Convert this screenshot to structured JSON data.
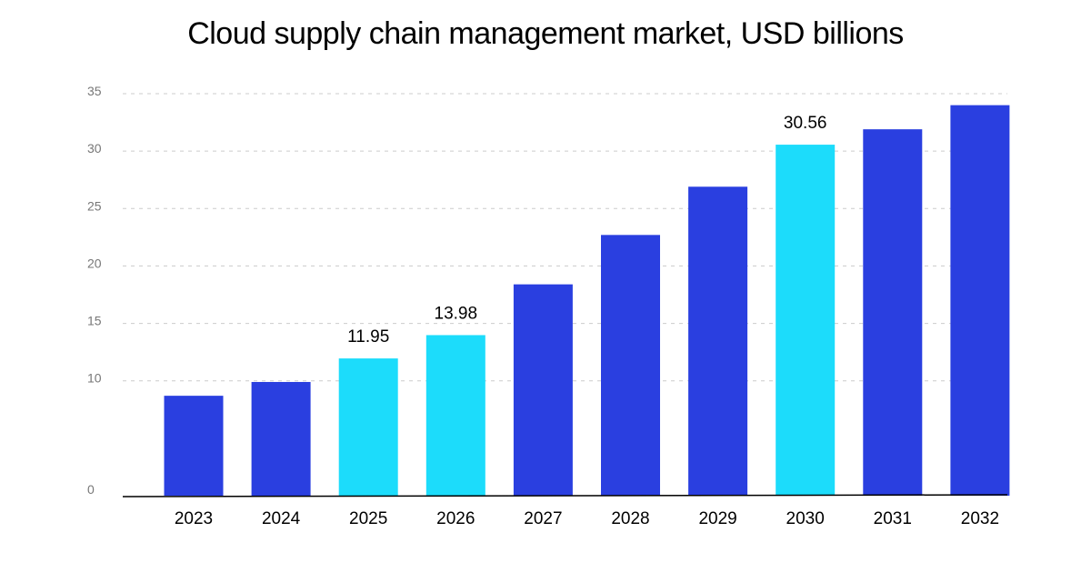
{
  "chart_data": {
    "type": "bar",
    "title": "Cloud supply chain management market, USD billions",
    "xlabel": "",
    "ylabel": "",
    "categories": [
      "2023",
      "2024",
      "2025",
      "2026",
      "2027",
      "2028",
      "2029",
      "2030",
      "2031",
      "2032"
    ],
    "values": [
      8.7,
      9.9,
      11.95,
      13.98,
      18.4,
      22.7,
      26.9,
      30.56,
      31.9,
      34.0
    ],
    "data_labels": [
      "",
      "",
      "11.95",
      "13.98",
      "",
      "",
      "",
      "30.56",
      "",
      ""
    ],
    "highlighted": [
      false,
      false,
      true,
      true,
      false,
      false,
      false,
      true,
      false,
      false
    ],
    "y_ticks": [
      "0",
      "10",
      "15",
      "20",
      "25",
      "30",
      "35"
    ],
    "y_tick_values": [
      0,
      10,
      15,
      20,
      25,
      30,
      35
    ],
    "ylim": [
      0,
      35
    ],
    "grid": true,
    "legend": "none",
    "colors": {
      "bar": "#2a3fe0",
      "bar_highlight": "#1cdcfb",
      "grid": "#cccccc",
      "axis": "#000000"
    }
  }
}
